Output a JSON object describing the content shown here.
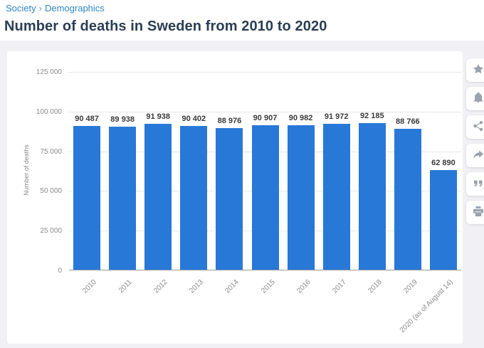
{
  "breadcrumb": {
    "items": [
      "Society",
      "Demographics"
    ],
    "separator": "›"
  },
  "page_title": "Number of deaths in Sweden from 2010 to 2020",
  "chart_data": {
    "type": "bar",
    "title": "Number of deaths in Sweden from 2010 to 2020",
    "categories": [
      "2010",
      "2011",
      "2012",
      "2013",
      "2014",
      "2015",
      "2016",
      "2017",
      "2018",
      "2019",
      "2020 (as of August 14)"
    ],
    "values": [
      90487,
      89938,
      91938,
      90402,
      88976,
      90907,
      90982,
      91972,
      92185,
      88766,
      62890
    ],
    "value_labels": [
      "90 487",
      "89 938",
      "91 938",
      "90 402",
      "88 976",
      "90 907",
      "90 982",
      "91 972",
      "92 185",
      "88 766",
      "62 890"
    ],
    "xlabel": "",
    "ylabel": "Number of deaths",
    "ylim": [
      0,
      125000
    ],
    "yticks": [
      {
        "value": 0,
        "label": "0"
      },
      {
        "value": 25000,
        "label": "25 000"
      },
      {
        "value": 50000,
        "label": "50 000"
      },
      {
        "value": 75000,
        "label": "75 000"
      },
      {
        "value": 100000,
        "label": "100 000"
      },
      {
        "value": 125000,
        "label": "125 000"
      }
    ],
    "bar_color": "#2878d8",
    "grid": "horizontal-dotted",
    "legend": "none"
  },
  "toolbar": {
    "buttons": [
      {
        "name": "favorite",
        "icon": "star-icon"
      },
      {
        "name": "notify",
        "icon": "bell-icon"
      },
      {
        "name": "share",
        "icon": "share-icon"
      },
      {
        "name": "share-alt",
        "icon": "share-alt-icon"
      },
      {
        "name": "cite",
        "icon": "quote-icon"
      },
      {
        "name": "print",
        "icon": "print-icon"
      }
    ]
  },
  "colors": {
    "bar": "#2878d8",
    "breadcrumb_link": "#2e86c8",
    "title_text": "#2b3e54",
    "axis_text": "#8a8a8a",
    "value_label_text": "#3a3a3a",
    "page_background": "#f1f1f5",
    "card_background": "#ffffff"
  }
}
